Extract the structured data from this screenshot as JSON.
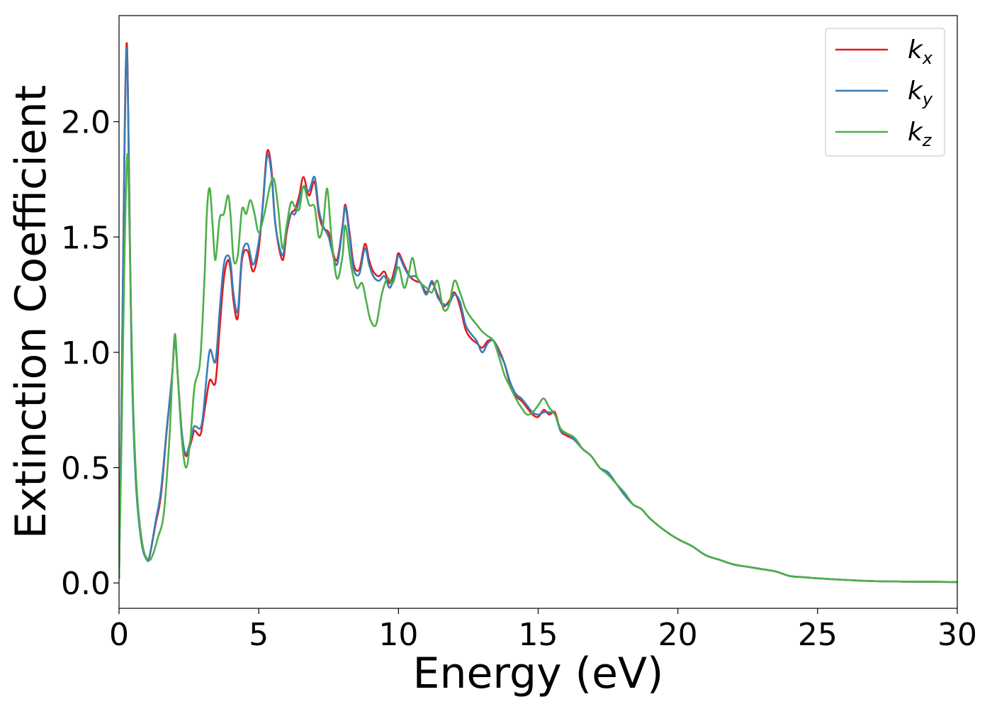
{
  "chart_data": {
    "type": "line",
    "xlabel": "Energy (eV)",
    "ylabel": "Extinction Coefficient",
    "xlim": [
      0,
      30
    ],
    "ylim": [
      -0.11,
      2.46
    ],
    "xticks": [
      0,
      5,
      10,
      15,
      20,
      25,
      30
    ],
    "xtick_labels": [
      "0",
      "5",
      "10",
      "15",
      "20",
      "25",
      "30"
    ],
    "yticks": [
      0.0,
      0.5,
      1.0,
      1.5,
      2.0
    ],
    "ytick_labels": [
      "0.0",
      "0.5",
      "1.0",
      "1.5",
      "2.0"
    ],
    "grid": false,
    "legend_position": "top-right",
    "series": [
      {
        "name": "k_x",
        "label_base": "k",
        "label_sub": "x",
        "color": "#e41a1c",
        "x": [
          0,
          0.1,
          0.2,
          0.28,
          0.35,
          0.45,
          0.6,
          0.8,
          1.0,
          1.1,
          1.3,
          1.5,
          1.7,
          1.9,
          2.0,
          2.1,
          2.25,
          2.4,
          2.6,
          2.7,
          2.9,
          3.0,
          3.1,
          3.25,
          3.45,
          3.6,
          3.75,
          3.9,
          4.0,
          4.1,
          4.25,
          4.4,
          4.6,
          4.8,
          5.0,
          5.15,
          5.3,
          5.45,
          5.6,
          5.85,
          6.0,
          6.15,
          6.3,
          6.45,
          6.6,
          6.8,
          7.0,
          7.15,
          7.3,
          7.5,
          7.6,
          7.8,
          8.0,
          8.1,
          8.25,
          8.4,
          8.6,
          8.8,
          8.95,
          9.1,
          9.3,
          9.5,
          9.7,
          9.9,
          10.0,
          10.2,
          10.4,
          10.6,
          10.8,
          11.0,
          11.2,
          11.4,
          11.6,
          11.8,
          12.0,
          12.2,
          12.4,
          12.6,
          12.8,
          13.0,
          13.2,
          13.4,
          13.6,
          13.8,
          14.0,
          14.2,
          14.4,
          14.6,
          14.8,
          15.0,
          15.2,
          15.4,
          15.6,
          15.8,
          16.0,
          16.3,
          16.6,
          16.9,
          17.2,
          17.5,
          17.8,
          18.1,
          18.4,
          18.7,
          19.0,
          19.5,
          20.0,
          20.5,
          21.0,
          21.5,
          22.0,
          22.5,
          23.0,
          23.5,
          24.0,
          24.5,
          25.0,
          26.0,
          27.0,
          28.0,
          29.0,
          30.0
        ],
        "values": [
          0.02,
          0.9,
          1.95,
          2.34,
          1.85,
          1.0,
          0.45,
          0.18,
          0.1,
          0.12,
          0.25,
          0.38,
          0.65,
          0.9,
          1.06,
          0.9,
          0.65,
          0.55,
          0.62,
          0.66,
          0.64,
          0.7,
          0.78,
          0.88,
          0.87,
          1.1,
          1.32,
          1.4,
          1.35,
          1.22,
          1.15,
          1.4,
          1.44,
          1.35,
          1.45,
          1.65,
          1.87,
          1.8,
          1.55,
          1.4,
          1.52,
          1.6,
          1.62,
          1.68,
          1.76,
          1.68,
          1.74,
          1.6,
          1.54,
          1.52,
          1.46,
          1.4,
          1.55,
          1.64,
          1.52,
          1.38,
          1.36,
          1.47,
          1.4,
          1.35,
          1.33,
          1.35,
          1.3,
          1.38,
          1.43,
          1.38,
          1.33,
          1.31,
          1.3,
          1.26,
          1.3,
          1.25,
          1.2,
          1.22,
          1.26,
          1.2,
          1.1,
          1.06,
          1.04,
          1.02,
          1.05,
          1.05,
          1.01,
          0.95,
          0.86,
          0.81,
          0.79,
          0.76,
          0.73,
          0.72,
          0.75,
          0.73,
          0.74,
          0.66,
          0.64,
          0.62,
          0.58,
          0.55,
          0.5,
          0.47,
          0.43,
          0.38,
          0.34,
          0.32,
          0.28,
          0.23,
          0.19,
          0.16,
          0.12,
          0.1,
          0.08,
          0.07,
          0.06,
          0.05,
          0.03,
          0.025,
          0.02,
          0.013,
          0.008,
          0.006,
          0.005,
          0.004
        ]
      },
      {
        "name": "k_y",
        "label_base": "k",
        "label_sub": "y",
        "color": "#377eb8",
        "x": [
          0,
          0.1,
          0.2,
          0.28,
          0.35,
          0.45,
          0.6,
          0.8,
          1.0,
          1.1,
          1.3,
          1.5,
          1.7,
          1.9,
          2.0,
          2.1,
          2.25,
          2.4,
          2.6,
          2.7,
          2.9,
          3.0,
          3.1,
          3.25,
          3.45,
          3.6,
          3.75,
          3.9,
          4.0,
          4.1,
          4.25,
          4.4,
          4.6,
          4.8,
          5.0,
          5.15,
          5.3,
          5.45,
          5.6,
          5.85,
          6.0,
          6.15,
          6.3,
          6.45,
          6.6,
          6.8,
          7.0,
          7.15,
          7.3,
          7.5,
          7.6,
          7.8,
          8.0,
          8.1,
          8.25,
          8.4,
          8.6,
          8.8,
          8.95,
          9.1,
          9.3,
          9.5,
          9.7,
          9.9,
          10.0,
          10.2,
          10.4,
          10.6,
          10.8,
          11.0,
          11.2,
          11.4,
          11.6,
          11.8,
          12.0,
          12.2,
          12.4,
          12.6,
          12.8,
          13.0,
          13.2,
          13.4,
          13.6,
          13.8,
          14.0,
          14.2,
          14.4,
          14.6,
          14.8,
          15.0,
          15.2,
          15.4,
          15.6,
          15.8,
          16.0,
          16.3,
          16.6,
          16.9,
          17.2,
          17.5,
          17.8,
          18.1,
          18.4,
          18.7,
          19.0,
          19.5,
          20.0,
          20.5,
          21.0,
          21.5,
          22.0,
          22.5,
          23.0,
          23.5,
          24.0,
          24.5,
          25.0,
          26.0,
          27.0,
          28.0,
          29.0,
          30.0
        ],
        "values": [
          0.02,
          0.88,
          1.9,
          2.32,
          1.82,
          0.98,
          0.44,
          0.18,
          0.1,
          0.12,
          0.26,
          0.4,
          0.66,
          0.9,
          1.07,
          0.9,
          0.65,
          0.56,
          0.64,
          0.68,
          0.67,
          0.72,
          0.85,
          1.01,
          0.96,
          1.18,
          1.38,
          1.42,
          1.38,
          1.25,
          1.18,
          1.42,
          1.47,
          1.38,
          1.48,
          1.64,
          1.85,
          1.78,
          1.55,
          1.42,
          1.54,
          1.6,
          1.6,
          1.66,
          1.72,
          1.7,
          1.76,
          1.62,
          1.55,
          1.5,
          1.45,
          1.38,
          1.54,
          1.63,
          1.5,
          1.36,
          1.34,
          1.45,
          1.38,
          1.33,
          1.31,
          1.33,
          1.28,
          1.36,
          1.42,
          1.37,
          1.33,
          1.33,
          1.3,
          1.25,
          1.31,
          1.24,
          1.21,
          1.21,
          1.25,
          1.22,
          1.12,
          1.08,
          1.05,
          1.0,
          1.04,
          1.05,
          1.0,
          0.95,
          0.87,
          0.82,
          0.8,
          0.77,
          0.74,
          0.73,
          0.74,
          0.74,
          0.73,
          0.66,
          0.65,
          0.62,
          0.58,
          0.55,
          0.5,
          0.48,
          0.43,
          0.38,
          0.34,
          0.32,
          0.28,
          0.23,
          0.19,
          0.16,
          0.12,
          0.1,
          0.08,
          0.07,
          0.06,
          0.05,
          0.03,
          0.025,
          0.02,
          0.013,
          0.008,
          0.006,
          0.005,
          0.004
        ]
      },
      {
        "name": "k_z",
        "label_base": "k",
        "label_sub": "z",
        "color": "#4daf4a",
        "x": [
          0,
          0.1,
          0.2,
          0.3,
          0.38,
          0.5,
          0.65,
          0.85,
          1.05,
          1.2,
          1.4,
          1.6,
          1.8,
          1.9,
          2.0,
          2.1,
          2.25,
          2.4,
          2.55,
          2.7,
          2.9,
          3.05,
          3.15,
          3.25,
          3.35,
          3.45,
          3.6,
          3.75,
          3.9,
          4.0,
          4.1,
          4.25,
          4.4,
          4.55,
          4.7,
          4.85,
          5.0,
          5.2,
          5.4,
          5.55,
          5.7,
          5.85,
          6.0,
          6.15,
          6.3,
          6.45,
          6.6,
          6.8,
          7.0,
          7.15,
          7.3,
          7.45,
          7.6,
          7.8,
          8.0,
          8.1,
          8.3,
          8.5,
          8.7,
          8.85,
          9.0,
          9.2,
          9.4,
          9.6,
          9.8,
          10.0,
          10.2,
          10.35,
          10.5,
          10.65,
          10.8,
          11.0,
          11.2,
          11.4,
          11.6,
          11.8,
          12.0,
          12.2,
          12.4,
          12.6,
          12.8,
          13.0,
          13.2,
          13.4,
          13.6,
          13.8,
          14.0,
          14.2,
          14.4,
          14.6,
          14.8,
          15.0,
          15.2,
          15.4,
          15.6,
          15.8,
          16.0,
          16.3,
          16.6,
          16.9,
          17.2,
          17.5,
          17.8,
          18.1,
          18.4,
          18.7,
          19.0,
          19.5,
          20.0,
          20.5,
          21.0,
          21.5,
          22.0,
          22.5,
          23.0,
          23.5,
          24.0,
          24.5,
          25.0,
          26.0,
          27.0,
          28.0,
          29.0,
          30.0
        ],
        "values": [
          0.02,
          0.7,
          1.45,
          1.86,
          1.5,
          0.8,
          0.38,
          0.16,
          0.1,
          0.12,
          0.2,
          0.3,
          0.62,
          0.88,
          1.08,
          0.9,
          0.62,
          0.5,
          0.62,
          0.85,
          0.96,
          1.3,
          1.62,
          1.71,
          1.55,
          1.4,
          1.58,
          1.6,
          1.68,
          1.58,
          1.4,
          1.42,
          1.62,
          1.6,
          1.66,
          1.6,
          1.52,
          1.6,
          1.72,
          1.75,
          1.62,
          1.45,
          1.55,
          1.65,
          1.63,
          1.62,
          1.72,
          1.64,
          1.63,
          1.5,
          1.55,
          1.71,
          1.5,
          1.32,
          1.42,
          1.55,
          1.38,
          1.28,
          1.3,
          1.22,
          1.14,
          1.12,
          1.25,
          1.32,
          1.3,
          1.37,
          1.28,
          1.33,
          1.41,
          1.33,
          1.3,
          1.28,
          1.26,
          1.31,
          1.19,
          1.2,
          1.31,
          1.26,
          1.19,
          1.15,
          1.12,
          1.09,
          1.07,
          1.05,
          0.98,
          0.9,
          0.85,
          0.8,
          0.76,
          0.73,
          0.74,
          0.77,
          0.8,
          0.76,
          0.73,
          0.67,
          0.65,
          0.63,
          0.58,
          0.55,
          0.5,
          0.47,
          0.43,
          0.39,
          0.34,
          0.32,
          0.28,
          0.23,
          0.19,
          0.16,
          0.12,
          0.1,
          0.08,
          0.07,
          0.06,
          0.05,
          0.03,
          0.025,
          0.02,
          0.013,
          0.008,
          0.006,
          0.005,
          0.004
        ]
      }
    ]
  }
}
